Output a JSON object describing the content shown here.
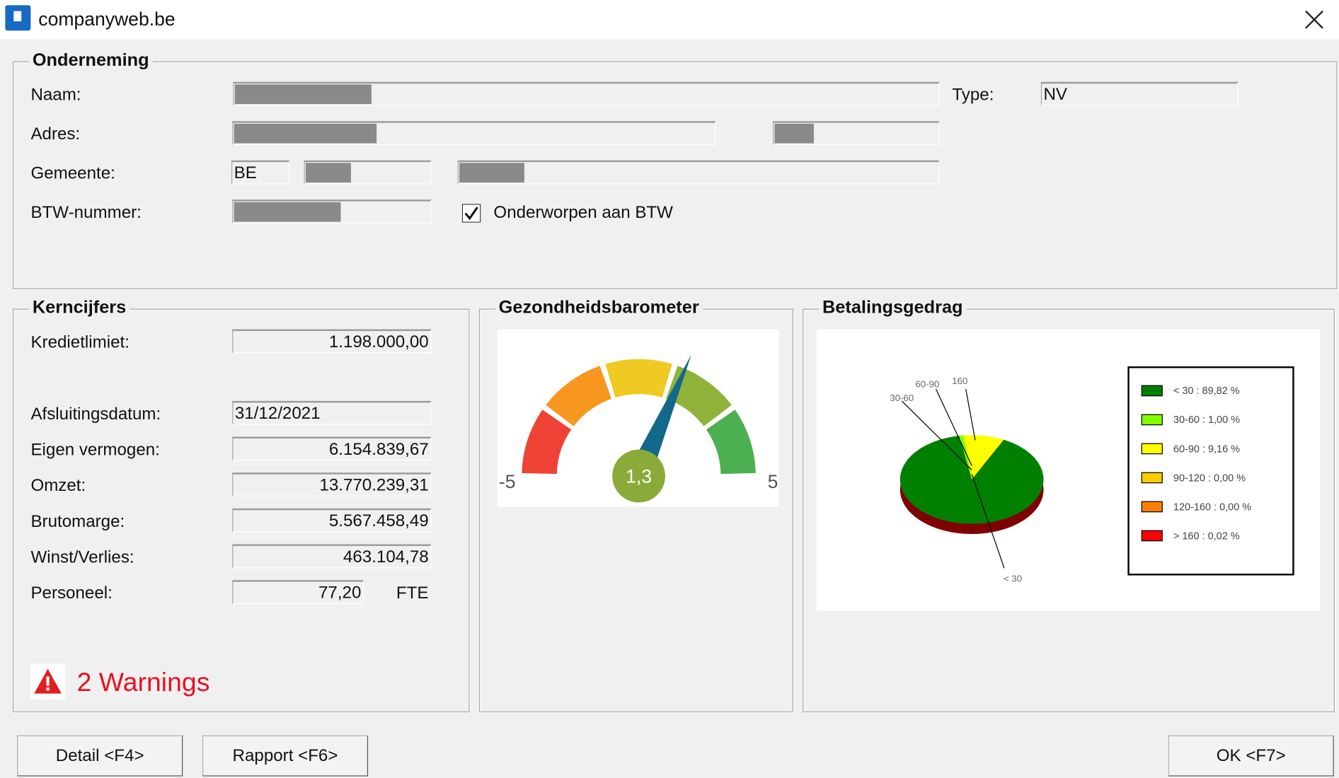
{
  "window": {
    "title": "companyweb.be"
  },
  "company": {
    "legend": "Onderneming",
    "name_label": "Naam:",
    "type_label": "Type:",
    "type_value": "NV",
    "address_label": "Adres:",
    "city_label": "Gemeente:",
    "country_value": "BE",
    "vat_label": "BTW-nummer:",
    "vat_checkbox": "Onderworpen aan BTW"
  },
  "key_figures": {
    "legend": "Kerncijfers",
    "rows": [
      {
        "label": "Kredietlimiet:",
        "value": "1.198.000,00"
      },
      {
        "label": "Afsluitingsdatum:",
        "value": "31/12/2021"
      },
      {
        "label": "Eigen vermogen:",
        "value": "6.154.839,67"
      },
      {
        "label": "Omzet:",
        "value": "13.770.239,31"
      },
      {
        "label": "Brutomarge:",
        "value": "5.567.458,49"
      },
      {
        "label": "Winst/Verlies:",
        "value": "463.104,78"
      },
      {
        "label": "Personeel:",
        "value": "77,20"
      }
    ],
    "staff_unit": "FTE",
    "warnings": "2 Warnings"
  },
  "chart_data": [
    {
      "type": "gauge",
      "title": "Gezondheidsbarometer",
      "value": 1.3,
      "value_label": "1,3",
      "min": -5,
      "max": 5,
      "band_colors": [
        "#ee4237",
        "#f7971f",
        "#f0c922",
        "#8fb33a",
        "#4caf50"
      ],
      "needle_color": "#12698a",
      "hub_color": "#8aab3a"
    },
    {
      "type": "pie",
      "title": "Betalingsgedrag",
      "categories": [
        "< 30",
        "30-60",
        "60-90",
        "90-120",
        "120-160",
        "> 160"
      ],
      "values": [
        89.82,
        1,
        9.16,
        0,
        0,
        0.02
      ],
      "legend_labels": [
        "< 30 : 89,82 %",
        "30-60 : 1,00 %",
        "60-90 : 9,16 %",
        "90-120 : 0,00 %",
        "120-160 : 0,00 %",
        "> 160 : 0,02 %"
      ],
      "callouts": [
        "< 30",
        "30-60",
        "60-90",
        "160"
      ],
      "colors": [
        "#008000",
        "#80ff00",
        "#ffff00",
        "#ffcc00",
        "#ff8000",
        "#ff0000"
      ],
      "shadow_color": "#800000",
      "legend": "right"
    }
  ],
  "buttons": {
    "detail": "Detail <F4>",
    "report": "Rapport <F6>",
    "ok": "OK <F7>"
  }
}
